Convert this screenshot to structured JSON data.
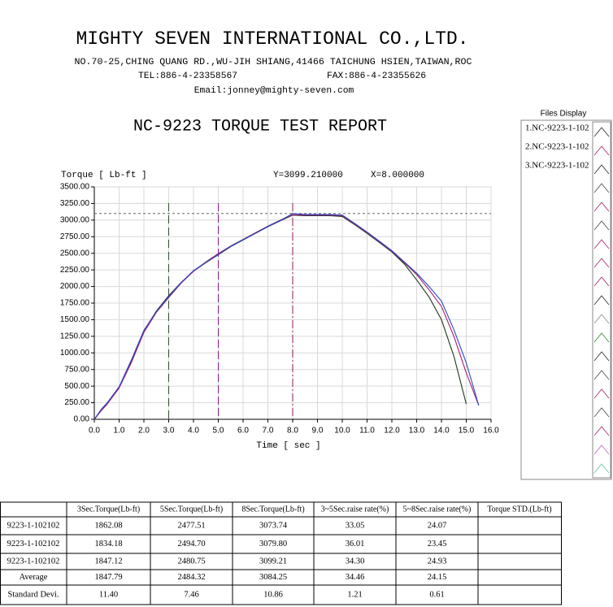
{
  "header": {
    "company": "MIGHTY SEVEN INTERNATIONAL CO.,LTD.",
    "address": "NO.70-25,CHING QUANG RD.,WU-JIH SHIANG,41466 TAICHUNG HSIEN,TAIWAN,ROC",
    "tel": "TEL:886-4-23358567",
    "fax": "FAX:886-4-23355626",
    "email": "Email:jonney@mighty-seven.com",
    "report_title": "NC-9223 TORQUE TEST REPORT"
  },
  "files_display": {
    "title": "Files Display"
  },
  "chart_data": {
    "type": "line",
    "y_label": "Torque [ Lb-ft ]",
    "x_label": "Time [ sec ]",
    "cursor": {
      "x": {
        "value": 8,
        "label": "X=8.000000"
      },
      "y": {
        "value": 3099.21,
        "label": "Y=3099.210000"
      }
    },
    "markers": [
      {
        "x": 3,
        "color": "#2f4f2f"
      },
      {
        "x": 5,
        "color": "#8b1a8b"
      },
      {
        "x": 8,
        "color": "#8b1a5a"
      }
    ],
    "grid": true,
    "xlim": [
      0,
      16
    ],
    "ylim": [
      0,
      3500
    ],
    "xticks": [
      {
        "value": 0,
        "label": "0.0"
      },
      {
        "value": 1,
        "label": "1.0"
      },
      {
        "value": 2,
        "label": "2.0"
      },
      {
        "value": 3,
        "label": "3.0"
      },
      {
        "value": 4,
        "label": "4.0"
      },
      {
        "value": 5,
        "label": "5.0"
      },
      {
        "value": 6,
        "label": "6.0"
      },
      {
        "value": 7,
        "label": "7.0"
      },
      {
        "value": 8,
        "label": "8.0"
      },
      {
        "value": 9,
        "label": "9.0"
      },
      {
        "value": 10,
        "label": "10.0"
      },
      {
        "value": 11,
        "label": "11.0"
      },
      {
        "value": 12,
        "label": "12.0"
      },
      {
        "value": 13,
        "label": "13.0"
      },
      {
        "value": 14,
        "label": "14.0"
      },
      {
        "value": 15,
        "label": "15.0"
      },
      {
        "value": 16,
        "label": "16.0"
      }
    ],
    "yticks": [
      {
        "value": 0,
        "label": "0.00"
      },
      {
        "value": 250,
        "label": "250.00"
      },
      {
        "value": 500,
        "label": "500.00"
      },
      {
        "value": 750,
        "label": "750.00"
      },
      {
        "value": 1000,
        "label": "1000.00"
      },
      {
        "value": 1250,
        "label": "1250.00"
      },
      {
        "value": 1500,
        "label": "1500.00"
      },
      {
        "value": 1750,
        "label": "1750.00"
      },
      {
        "value": 2000,
        "label": "2000.00"
      },
      {
        "value": 2250,
        "label": "2250.00"
      },
      {
        "value": 2500,
        "label": "2500.00"
      },
      {
        "value": 2750,
        "label": "2750.00"
      },
      {
        "value": 3000,
        "label": "3000.00"
      },
      {
        "value": 3250,
        "label": "3250.00"
      },
      {
        "value": 3500,
        "label": "3500.00"
      }
    ],
    "x": [
      0,
      0.3,
      0.5,
      1,
      1.5,
      2,
      2.5,
      3,
      3.5,
      4,
      4.5,
      5,
      5.5,
      6,
      6.5,
      7,
      7.5,
      8,
      8.5,
      9,
      9.5,
      10,
      10.5,
      11,
      11.5,
      12,
      12.5,
      13,
      13.5,
      14,
      14.5,
      15,
      15.5
    ],
    "series": [
      {
        "name": "1.NC-9223-1-102",
        "color": "#1e3a1e",
        "values": [
          0,
          150,
          230,
          480,
          880,
          1330,
          1630,
          1862,
          2060,
          2230,
          2360,
          2478,
          2600,
          2700,
          2800,
          2900,
          2990,
          3074,
          3065,
          3065,
          3065,
          3055,
          2930,
          2800,
          2660,
          2520,
          2340,
          2100,
          1840,
          1500,
          950,
          230,
          null
        ]
      },
      {
        "name": "2.NC-9223-1-102",
        "color": "#a0206e",
        "values": [
          0,
          140,
          220,
          470,
          860,
          1310,
          1610,
          1834,
          2050,
          2230,
          2370,
          2495,
          2610,
          2710,
          2810,
          2910,
          3000,
          3080,
          3075,
          3075,
          3075,
          3065,
          2940,
          2810,
          2670,
          2530,
          2360,
          2180,
          1950,
          1700,
          1250,
          700,
          210
        ]
      },
      {
        "name": "3.NC-9223-1-102",
        "color": "#2f46c8",
        "values": [
          0,
          160,
          240,
          490,
          900,
          1340,
          1620,
          1847,
          2060,
          2240,
          2365,
          2481,
          2605,
          2705,
          2805,
          2905,
          2995,
          3099,
          3085,
          3085,
          3085,
          3075,
          2950,
          2820,
          2680,
          2540,
          2370,
          2200,
          2000,
          1780,
          1350,
          850,
          210
        ]
      }
    ]
  },
  "table": {
    "columns": [
      "3Sec.Torque(Lb-ft)",
      "5Sec.Torque(Lb-ft)",
      "8Sec.Torque(Lb-ft)",
      "3~5Sec.raise rate(%)",
      "5~8Sec.raise rate(%)",
      "Torque STD.(Lb-ft)"
    ],
    "rows": [
      [
        "9223-1-102102",
        "1862.08",
        "2477.51",
        "3073.74",
        "33.05",
        "24.07"
      ],
      [
        "9223-1-102102",
        "1834.18",
        "2494.70",
        "3079.80",
        "36.01",
        "23.45"
      ],
      [
        "9223-1-102102",
        "1847.12",
        "2480.75",
        "3099.21",
        "34.30",
        "24.93"
      ],
      [
        "Average",
        "1847.79",
        "2484.32",
        "3084.25",
        "34.46",
        "24.15"
      ],
      [
        "Standard Devi.",
        "11.40",
        "7.46",
        "10.86",
        "1.21",
        "0.61"
      ]
    ]
  }
}
